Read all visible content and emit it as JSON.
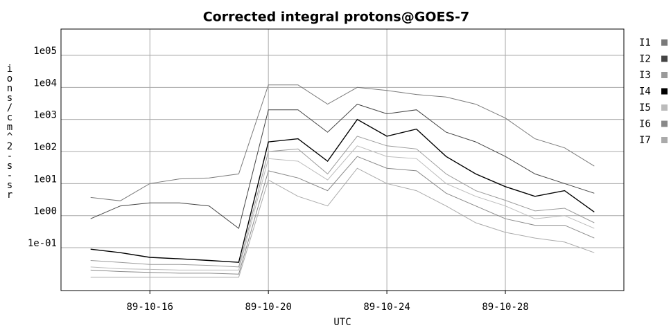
{
  "chart_data": {
    "type": "line",
    "title": "Corrected integral protons@GOES-7",
    "xlabel": "UTC",
    "ylabel": "ions/cm^2-s-sr",
    "log_y": true,
    "grid": true,
    "legend": "right",
    "x": [
      "89-10-14",
      "89-10-15",
      "89-10-16",
      "89-10-17",
      "89-10-18",
      "89-10-19",
      "89-10-20",
      "89-10-21",
      "89-10-22",
      "89-10-23",
      "89-10-24",
      "89-10-25",
      "89-10-26",
      "89-10-27",
      "89-10-28",
      "89-10-29",
      "89-10-30",
      "89-10-31"
    ],
    "xlim": [
      "89-10-13",
      "89-11-01"
    ],
    "xticks": [
      "89-10-16",
      "89-10-20",
      "89-10-24",
      "89-10-28"
    ],
    "ylim": [
      0.0046,
      660000
    ],
    "yticks": [
      {
        "value": 100000,
        "label": "1e05"
      },
      {
        "value": 10000,
        "label": "1e04"
      },
      {
        "value": 1000,
        "label": "1e03"
      },
      {
        "value": 100,
        "label": "1e02"
      },
      {
        "value": 10,
        "label": "1e01"
      },
      {
        "value": 1,
        "label": "1e00"
      },
      {
        "value": 0.1,
        "label": "1e-01"
      }
    ],
    "series": [
      {
        "name": "I1",
        "color": "#7a7a7a",
        "values": [
          3.7,
          2.9,
          10,
          14,
          15,
          20,
          12000,
          12000,
          3000,
          10000,
          8000,
          6000,
          5000,
          3000,
          1100,
          250,
          130,
          35
        ]
      },
      {
        "name": "I2",
        "color": "#444444",
        "values": [
          0.8,
          2,
          2.5,
          2.5,
          2,
          0.4,
          2000,
          2000,
          400,
          3000,
          1500,
          2000,
          400,
          200,
          70,
          20,
          10,
          5
        ]
      },
      {
        "name": "I3",
        "color": "#9a9a9a",
        "values": [
          0.04,
          0.035,
          0.03,
          0.03,
          0.028,
          0.025,
          100,
          120,
          20,
          300,
          150,
          120,
          20,
          6,
          3,
          1.4,
          1.7,
          0.6
        ]
      },
      {
        "name": "I4",
        "color": "#000000",
        "values": [
          0.09,
          0.07,
          0.05,
          0.045,
          0.04,
          0.035,
          200,
          250,
          50,
          1000,
          300,
          500,
          70,
          20,
          8,
          4,
          6,
          1.3
        ]
      },
      {
        "name": "I5",
        "color": "#bbbbbb",
        "values": [
          0.025,
          0.022,
          0.021,
          0.02,
          0.02,
          0.02,
          60,
          50,
          13,
          150,
          70,
          60,
          10,
          4,
          2,
          0.8,
          1,
          0.4
        ]
      },
      {
        "name": "I6",
        "color": "#888888",
        "values": [
          0.02,
          0.018,
          0.017,
          0.016,
          0.016,
          0.015,
          25,
          15,
          6,
          70,
          30,
          25,
          5,
          2,
          0.8,
          0.5,
          0.5,
          0.2
        ]
      },
      {
        "name": "I7",
        "color": "#aaaaaa",
        "values": [
          0.012,
          0.012,
          0.012,
          0.012,
          0.012,
          0.012,
          13,
          4,
          2,
          30,
          10,
          6,
          2,
          0.6,
          0.3,
          0.2,
          0.15,
          0.07
        ]
      }
    ]
  }
}
